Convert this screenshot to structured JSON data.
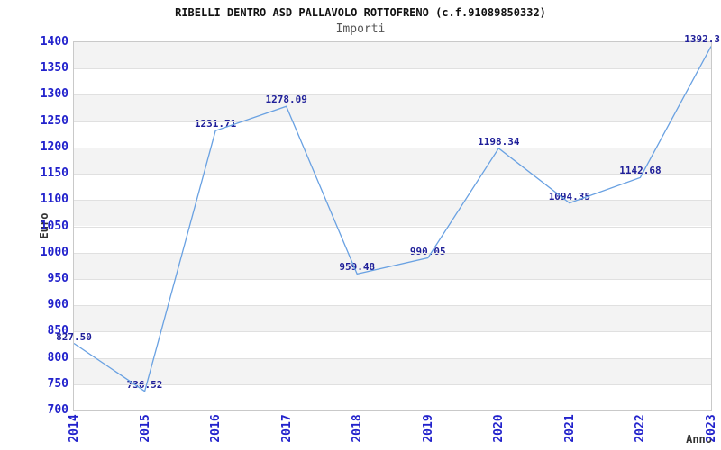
{
  "title": "RIBELLI DENTRO ASD PALLAVOLO ROTTOFRENO (c.f.91089850332)",
  "subtitle": "Importi",
  "chart_data": {
    "type": "line",
    "x": [
      "2014",
      "2015",
      "2016",
      "2017",
      "2018",
      "2019",
      "2020",
      "2021",
      "2022",
      "2023"
    ],
    "series": [
      {
        "name": "Importi",
        "values": [
          827.5,
          736.52,
          1231.71,
          1278.09,
          959.48,
          990.05,
          1198.34,
          1094.35,
          1142.68,
          1392.3
        ]
      }
    ],
    "point_labels": [
      "827.50",
      "736.52",
      "1231.71",
      "1278.09",
      "959.48",
      "990.05",
      "1198.34",
      "1094.35",
      "1142.68",
      "1392.3"
    ],
    "xlabel": "Anno",
    "ylabel": "Euro",
    "ylim": [
      700,
      1400
    ],
    "ytick_step": 50,
    "legend": "none",
    "grid": "horizontal-bands",
    "band_colors": [
      "#f3f3f3",
      "#ffffff"
    ],
    "line_color": "#69a1e2"
  },
  "colors": {
    "tick_label": "#2222cc",
    "point_label": "#1f1f99",
    "axis_title": "#333333",
    "title": "#111111",
    "subtitle": "#555555",
    "plot_border": "#c9c9c9",
    "gridline": "#e0e0e0",
    "background": "#ffffff"
  }
}
